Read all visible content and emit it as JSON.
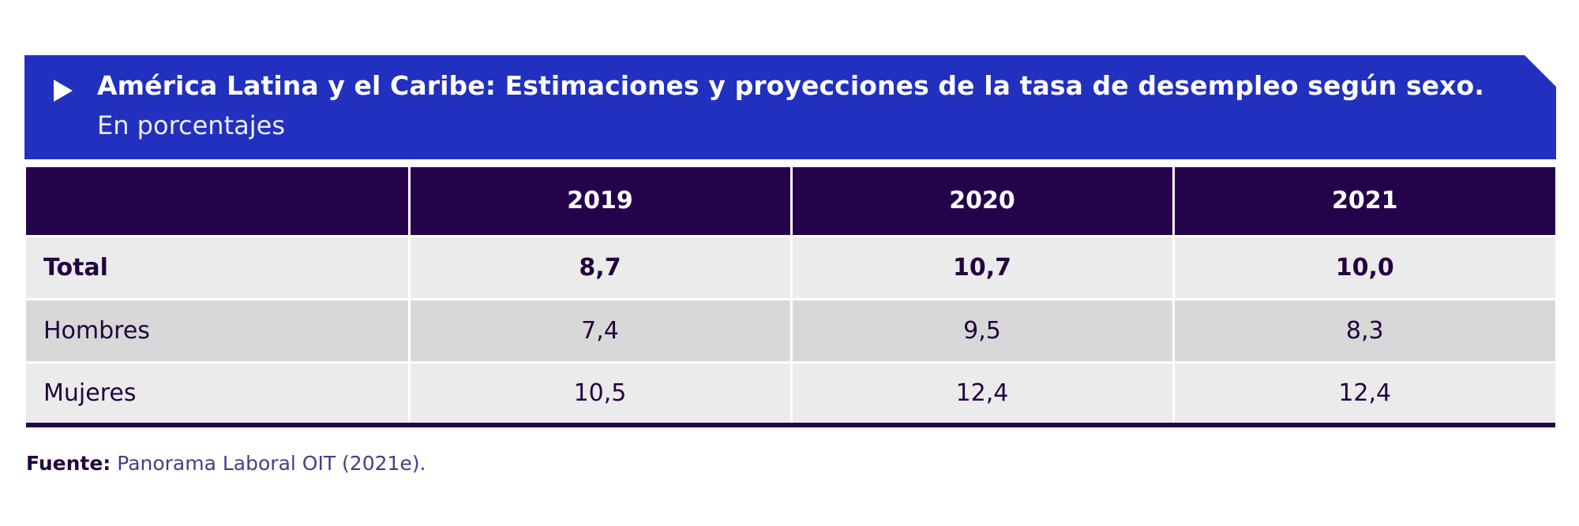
{
  "colors": {
    "banner": "#2130be",
    "header": "#24034b",
    "row_light": "#ebebeb",
    "row_dark": "#d8d8d8",
    "text_dark": "#23043f"
  },
  "chart_data": {
    "type": "table",
    "title": "América Latina y el Caribe: Estimaciones y proyecciones de la tasa de desempleo según sexo.",
    "subtitle": "En porcentajes",
    "columns": [
      "",
      "2019",
      "2020",
      "2021"
    ],
    "rows": [
      {
        "label": "Total",
        "values": [
          "8,7",
          "10,7",
          "10,0"
        ]
      },
      {
        "label": "Hombres",
        "values": [
          "7,4",
          "9,5",
          "8,3"
        ]
      },
      {
        "label": "Mujeres",
        "values": [
          "10,5",
          "12,4",
          "12,4"
        ]
      }
    ],
    "source_label": "Fuente:",
    "source_text": " Panorama Laboral OIT (2021e)."
  }
}
